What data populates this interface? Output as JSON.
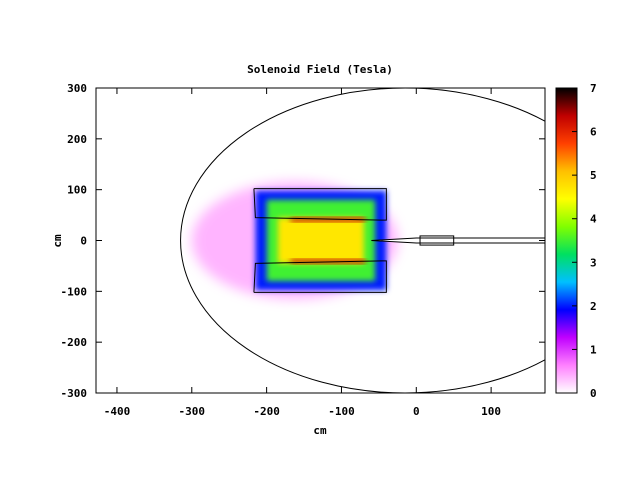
{
  "chart_data": {
    "type": "heatmap",
    "title": "Solenoid Field (Tesla)",
    "xlabel": "cm",
    "ylabel": "cm",
    "xlim": [
      -428,
      172
    ],
    "ylim": [
      -300,
      300
    ],
    "x_ticks": [
      -400,
      -300,
      -200,
      -100,
      0,
      100
    ],
    "y_ticks": [
      -300,
      -200,
      -100,
      0,
      100,
      200,
      300
    ],
    "x_tick_labels": [
      "-400",
      "-300",
      "-200",
      "-100",
      "0",
      "100"
    ],
    "y_tick_labels": [
      "-300",
      "-200",
      "-100",
      "0",
      "100",
      "200",
      "300"
    ],
    "colorbar": {
      "range": [
        0,
        7
      ],
      "ticks": [
        0,
        1,
        2,
        3,
        4,
        5,
        6,
        7
      ],
      "tick_labels": [
        "0",
        "1",
        "2",
        "3",
        "4",
        "5",
        "6",
        "7"
      ],
      "palette": [
        "#ffffff",
        "#ff80ff",
        "#c000ff",
        "#0000ff",
        "#00c0ff",
        "#00e060",
        "#80ff00",
        "#ffff00",
        "#ffc000",
        "#ff4000",
        "#c00000",
        "#000000"
      ]
    },
    "field_regions": [
      {
        "name": "outer-halo",
        "x": [
          -300,
          -25
        ],
        "y": [
          -115,
          115
        ],
        "value": 0.5
      },
      {
        "name": "coil-body",
        "x": [
          -215,
          -40
        ],
        "y": [
          -98,
          98
        ],
        "value": 2.0
      },
      {
        "name": "inner-bore",
        "x": [
          -200,
          -55
        ],
        "y": [
          -80,
          80
        ],
        "value": 3.5
      },
      {
        "name": "core",
        "x": [
          -185,
          -70
        ],
        "y": [
          -45,
          45
        ],
        "value": 4.7
      }
    ],
    "hotspots": [
      {
        "x": [
          -168,
          -68
        ],
        "y": [
          37,
          45
        ],
        "value": 6.2
      },
      {
        "x": [
          -168,
          -68
        ],
        "y": [
          -45,
          -37
        ],
        "value": 6.2
      }
    ],
    "boundary_ellipse": {
      "center": [
        -15,
        0
      ],
      "rx": 300,
      "ry": 300
    },
    "coil_outline": [
      [
        -217,
        102
      ],
      [
        -40,
        102
      ],
      [
        -40,
        40
      ],
      [
        -215,
        45
      ]
    ],
    "beam_pipe": {
      "x_start": -60,
      "x_end": 172,
      "y_half": 5
    }
  }
}
